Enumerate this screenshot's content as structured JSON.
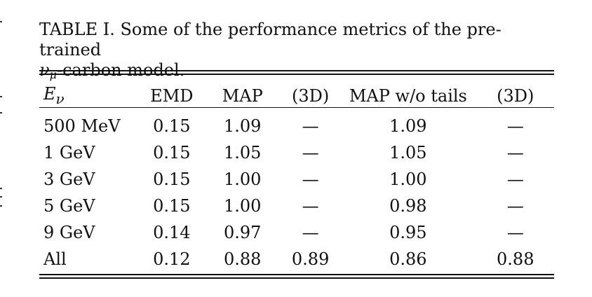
{
  "caption": {
    "line1": "TABLE I. Some of the performance metrics of the pre-trained",
    "nu_symbol": "ν",
    "mu_sub": "μ",
    "line2_rest": "-carbon model."
  },
  "table": {
    "headers": {
      "energy_symbol": "E",
      "energy_sub": "ν",
      "emd": "EMD",
      "map": "MAP",
      "map_3d": "(3D)",
      "map_wo_tails": "MAP w/o tails",
      "map_wo_tails_3d": "(3D)"
    },
    "rows": [
      {
        "energy": "500 MeV",
        "emd": "0.15",
        "map": "1.09",
        "map_3d": "—",
        "map_wo_tails": "1.09",
        "map_wo_tails_3d": "—"
      },
      {
        "energy": "1 GeV",
        "emd": "0.15",
        "map": "1.05",
        "map_3d": "—",
        "map_wo_tails": "1.05",
        "map_wo_tails_3d": "—"
      },
      {
        "energy": "3 GeV",
        "emd": "0.15",
        "map": "1.00",
        "map_3d": "—",
        "map_wo_tails": "1.00",
        "map_wo_tails_3d": "—"
      },
      {
        "energy": "5 GeV",
        "emd": "0.15",
        "map": "1.00",
        "map_3d": "—",
        "map_wo_tails": "0.98",
        "map_wo_tails_3d": "—"
      },
      {
        "energy": "9 GeV",
        "emd": "0.14",
        "map": "0.97",
        "map_3d": "—",
        "map_wo_tails": "0.95",
        "map_wo_tails_3d": "—"
      },
      {
        "energy": "All",
        "emd": "0.12",
        "map": "0.88",
        "map_3d": "0.89",
        "map_wo_tails": "0.86",
        "map_wo_tails_3d": "0.88"
      }
    ]
  }
}
